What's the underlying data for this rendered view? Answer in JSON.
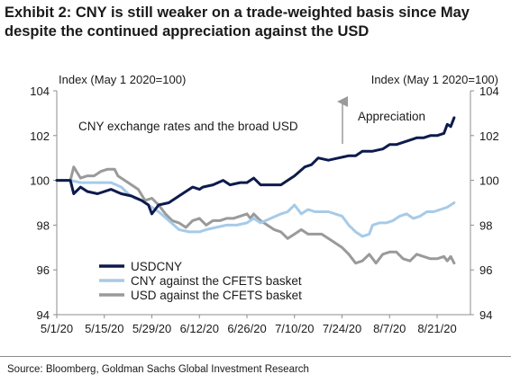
{
  "header": {
    "title": "Exhibit 2: CNY is still weaker on a trade-weighted basis since May despite the continued appreciation against the USD"
  },
  "footer": {
    "source": "Source: Bloomberg, Goldman Sachs Global Investment Research"
  },
  "chart_data": {
    "type": "line",
    "title": "",
    "xlabel": "",
    "ylabel_left": "Index (May 1 2020=100)",
    "ylabel_right": "Index (May 1 2020=100)",
    "ylim": [
      94,
      104
    ],
    "yticks": [
      94,
      96,
      98,
      100,
      102,
      104
    ],
    "xlim": [
      0,
      118
    ],
    "categories": [
      "5/1/20",
      "5/15/20",
      "5/29/20",
      "6/12/20",
      "6/26/20",
      "7/10/20",
      "7/24/20",
      "8/7/20",
      "8/21/20"
    ],
    "category_day_offsets": [
      0,
      14,
      28,
      42,
      56,
      70,
      84,
      98,
      112
    ],
    "grid": false,
    "legend_position": "bottom-left",
    "annotations": {
      "inner_title": "CNY exchange rates and the broad USD",
      "arrow_label": "Appreciation"
    },
    "series": [
      {
        "name": "USDCNY",
        "color": "#0d1b4c",
        "width": 3,
        "points": [
          [
            0,
            100
          ],
          [
            4,
            100
          ],
          [
            5,
            99.4
          ],
          [
            7,
            99.7
          ],
          [
            9,
            99.5
          ],
          [
            12,
            99.4
          ],
          [
            16,
            99.6
          ],
          [
            19,
            99.4
          ],
          [
            22,
            99.3
          ],
          [
            25,
            99.1
          ],
          [
            27,
            98.9
          ],
          [
            28,
            98.5
          ],
          [
            30,
            98.9
          ],
          [
            33,
            99.0
          ],
          [
            36,
            99.3
          ],
          [
            38,
            99.5
          ],
          [
            40,
            99.7
          ],
          [
            42,
            99.6
          ],
          [
            43,
            99.7
          ],
          [
            46,
            99.8
          ],
          [
            49,
            100.0
          ],
          [
            51,
            99.8
          ],
          [
            54,
            99.9
          ],
          [
            56,
            99.9
          ],
          [
            58,
            100.1
          ],
          [
            60,
            99.8
          ],
          [
            63,
            99.8
          ],
          [
            66,
            99.8
          ],
          [
            68,
            100.0
          ],
          [
            70,
            100.2
          ],
          [
            73,
            100.6
          ],
          [
            75,
            100.7
          ],
          [
            77,
            101.0
          ],
          [
            80,
            100.9
          ],
          [
            83,
            101.0
          ],
          [
            86,
            101.1
          ],
          [
            88,
            101.1
          ],
          [
            90,
            101.3
          ],
          [
            93,
            101.3
          ],
          [
            96,
            101.4
          ],
          [
            98,
            101.6
          ],
          [
            100,
            101.6
          ],
          [
            102,
            101.7
          ],
          [
            104,
            101.8
          ],
          [
            106,
            101.9
          ],
          [
            108,
            101.9
          ],
          [
            110,
            102.0
          ],
          [
            112,
            102.0
          ],
          [
            114,
            102.1
          ],
          [
            115,
            102.5
          ],
          [
            116,
            102.4
          ],
          [
            117,
            102.8
          ]
        ]
      },
      {
        "name": "CNY against the CFETS basket",
        "color": "#a6cbe8",
        "width": 3,
        "points": [
          [
            0,
            100
          ],
          [
            4,
            100
          ],
          [
            7,
            99.9
          ],
          [
            10,
            99.9
          ],
          [
            13,
            99.9
          ],
          [
            16,
            99.9
          ],
          [
            19,
            99.7
          ],
          [
            21,
            99.4
          ],
          [
            23,
            99.2
          ],
          [
            25,
            99.1
          ],
          [
            27,
            98.9
          ],
          [
            30,
            98.6
          ],
          [
            33,
            98.2
          ],
          [
            36,
            97.8
          ],
          [
            39,
            97.7
          ],
          [
            42,
            97.7
          ],
          [
            44,
            97.8
          ],
          [
            47,
            97.9
          ],
          [
            50,
            98.0
          ],
          [
            53,
            98.0
          ],
          [
            56,
            98.1
          ],
          [
            58,
            98.3
          ],
          [
            60,
            98.1
          ],
          [
            63,
            98.3
          ],
          [
            66,
            98.5
          ],
          [
            68,
            98.6
          ],
          [
            70,
            98.9
          ],
          [
            72,
            98.5
          ],
          [
            74,
            98.7
          ],
          [
            76,
            98.6
          ],
          [
            78,
            98.6
          ],
          [
            80,
            98.6
          ],
          [
            82,
            98.5
          ],
          [
            84,
            98.4
          ],
          [
            86,
            98.0
          ],
          [
            88,
            97.7
          ],
          [
            90,
            97.5
          ],
          [
            92,
            97.6
          ],
          [
            93,
            98.0
          ],
          [
            95,
            98.1
          ],
          [
            97,
            98.1
          ],
          [
            99,
            98.2
          ],
          [
            101,
            98.4
          ],
          [
            103,
            98.5
          ],
          [
            105,
            98.3
          ],
          [
            107,
            98.4
          ],
          [
            109,
            98.6
          ],
          [
            111,
            98.6
          ],
          [
            113,
            98.7
          ],
          [
            115,
            98.8
          ],
          [
            117,
            99.0
          ]
        ]
      },
      {
        "name": "USD against the CFETS basket",
        "color": "#9a9a9a",
        "width": 3,
        "points": [
          [
            0,
            100
          ],
          [
            4,
            100
          ],
          [
            5,
            100.6
          ],
          [
            7,
            100.1
          ],
          [
            9,
            100.2
          ],
          [
            11,
            100.2
          ],
          [
            13,
            100.4
          ],
          [
            15,
            100.5
          ],
          [
            17,
            100.5
          ],
          [
            18,
            100.2
          ],
          [
            20,
            100.0
          ],
          [
            22,
            99.8
          ],
          [
            24,
            99.6
          ],
          [
            26,
            99.1
          ],
          [
            28,
            99.2
          ],
          [
            30,
            98.9
          ],
          [
            32,
            98.5
          ],
          [
            34,
            98.2
          ],
          [
            36,
            98.1
          ],
          [
            38,
            97.9
          ],
          [
            40,
            98.2
          ],
          [
            42,
            98.3
          ],
          [
            44,
            98.0
          ],
          [
            46,
            98.2
          ],
          [
            48,
            98.2
          ],
          [
            50,
            98.3
          ],
          [
            52,
            98.3
          ],
          [
            54,
            98.4
          ],
          [
            56,
            98.5
          ],
          [
            57,
            98.3
          ],
          [
            58,
            98.5
          ],
          [
            60,
            98.2
          ],
          [
            62,
            98.0
          ],
          [
            64,
            97.8
          ],
          [
            66,
            97.7
          ],
          [
            68,
            97.4
          ],
          [
            70,
            97.6
          ],
          [
            72,
            97.8
          ],
          [
            74,
            97.6
          ],
          [
            76,
            97.6
          ],
          [
            78,
            97.6
          ],
          [
            80,
            97.4
          ],
          [
            82,
            97.2
          ],
          [
            84,
            97.0
          ],
          [
            86,
            96.7
          ],
          [
            88,
            96.3
          ],
          [
            90,
            96.4
          ],
          [
            92,
            96.7
          ],
          [
            94,
            96.3
          ],
          [
            96,
            96.7
          ],
          [
            98,
            96.8
          ],
          [
            100,
            96.8
          ],
          [
            102,
            96.5
          ],
          [
            104,
            96.4
          ],
          [
            106,
            96.7
          ],
          [
            108,
            96.6
          ],
          [
            110,
            96.5
          ],
          [
            112,
            96.5
          ],
          [
            114,
            96.6
          ],
          [
            115,
            96.4
          ],
          [
            116,
            96.6
          ],
          [
            117,
            96.3
          ]
        ]
      }
    ]
  }
}
